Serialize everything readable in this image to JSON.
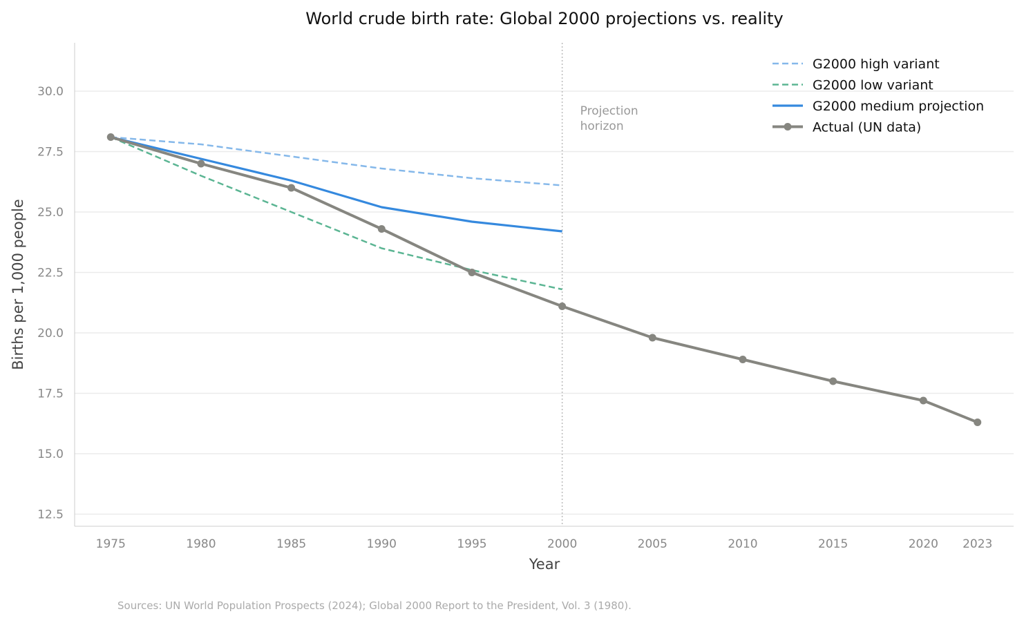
{
  "chart_data": {
    "type": "line",
    "title": "World crude birth rate: Global 2000 projections vs. reality",
    "xlabel": "Year",
    "ylabel": "Births per 1,000 people",
    "xlim": [
      1973,
      2025
    ],
    "ylim": [
      12,
      32
    ],
    "xticks": [
      1975,
      1980,
      1985,
      1990,
      1995,
      2000,
      2005,
      2010,
      2015,
      2020,
      2023
    ],
    "yticks": [
      12.5,
      15.0,
      17.5,
      20.0,
      22.5,
      25.0,
      27.5,
      30.0
    ],
    "grid": "horizontal",
    "legend_position": "top-right",
    "annotation": {
      "text_line1": "Projection",
      "text_line2": "horizon",
      "x": 2000
    },
    "series": [
      {
        "name": "G2000 high variant",
        "style": "dashed",
        "color": "#85b8ea",
        "x": [
          1975,
          1980,
          1985,
          1990,
          1995,
          2000
        ],
        "y": [
          28.1,
          27.8,
          27.3,
          26.8,
          26.4,
          26.1
        ]
      },
      {
        "name": "G2000 low variant",
        "style": "dashed",
        "color": "#5bb593",
        "x": [
          1975,
          1980,
          1985,
          1990,
          1995,
          2000
        ],
        "y": [
          28.1,
          26.5,
          25.0,
          23.5,
          22.6,
          21.8
        ]
      },
      {
        "name": "G2000 medium projection",
        "style": "solid",
        "color": "#3589de",
        "x": [
          1975,
          1980,
          1985,
          1990,
          1995,
          2000
        ],
        "y": [
          28.1,
          27.2,
          26.3,
          25.2,
          24.6,
          24.2
        ]
      },
      {
        "name": "Actual (UN data)",
        "style": "solid-markers",
        "color": "#868680",
        "x": [
          1975,
          1980,
          1985,
          1990,
          1995,
          2000,
          2005,
          2010,
          2015,
          2020,
          2023
        ],
        "y": [
          28.1,
          27.0,
          26.0,
          24.3,
          22.5,
          21.1,
          19.8,
          18.9,
          18.0,
          17.2,
          16.3
        ]
      }
    ]
  },
  "footer": {
    "source": "Sources: UN World Population Prospects (2024); Global 2000 Report to the President, Vol. 3 (1980)."
  }
}
